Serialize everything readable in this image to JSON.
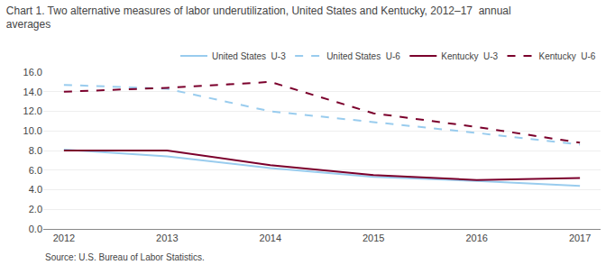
{
  "chart_data": {
    "type": "line",
    "title": "Chart 1. Two alternative measures of labor underutilization, United States and Kentucky, 2012–17  annual\naverages",
    "x": [
      2012,
      2013,
      2014,
      2015,
      2016,
      2017
    ],
    "series": [
      {
        "name": "United States  U-3",
        "color": "#99CCEE",
        "line_style": "solid",
        "values": [
          8.1,
          7.4,
          6.2,
          5.3,
          4.9,
          4.4
        ]
      },
      {
        "name": "United States  U-6",
        "color": "#99CCEE",
        "line_style": "dash",
        "values": [
          14.7,
          14.3,
          12.0,
          10.9,
          9.8,
          8.6
        ]
      },
      {
        "name": "Kentucky  U-3",
        "color": "#7B002C",
        "line_style": "solid",
        "values": [
          8.0,
          8.0,
          6.5,
          5.5,
          5.0,
          5.2
        ]
      },
      {
        "name": "Kentucky  U-6",
        "color": "#7B002C",
        "line_style": "dash",
        "values": [
          14.0,
          14.4,
          15.0,
          11.8,
          10.4,
          8.8
        ]
      }
    ],
    "xlim": [
      2011.8,
      2017.2
    ],
    "xticks": [
      2012,
      2013,
      2014,
      2015,
      2016,
      2017
    ],
    "ylim": [
      0.0,
      16.0
    ],
    "yticks": [
      {
        "value": 0,
        "label": "0.0"
      },
      {
        "value": 2,
        "label": "2.0"
      },
      {
        "value": 4,
        "label": "4.0"
      },
      {
        "value": 6,
        "label": "6.0"
      },
      {
        "value": 8,
        "label": "8.0"
      },
      {
        "value": 10,
        "label": "10.0"
      },
      {
        "value": 12,
        "label": "12.0"
      },
      {
        "value": 14,
        "label": "14.0"
      },
      {
        "value": 16,
        "label": "16.0"
      }
    ],
    "grid": true,
    "legend": "upper right",
    "annotations": [
      "Source: U.S. Bureau of Labor Statistics."
    ]
  }
}
